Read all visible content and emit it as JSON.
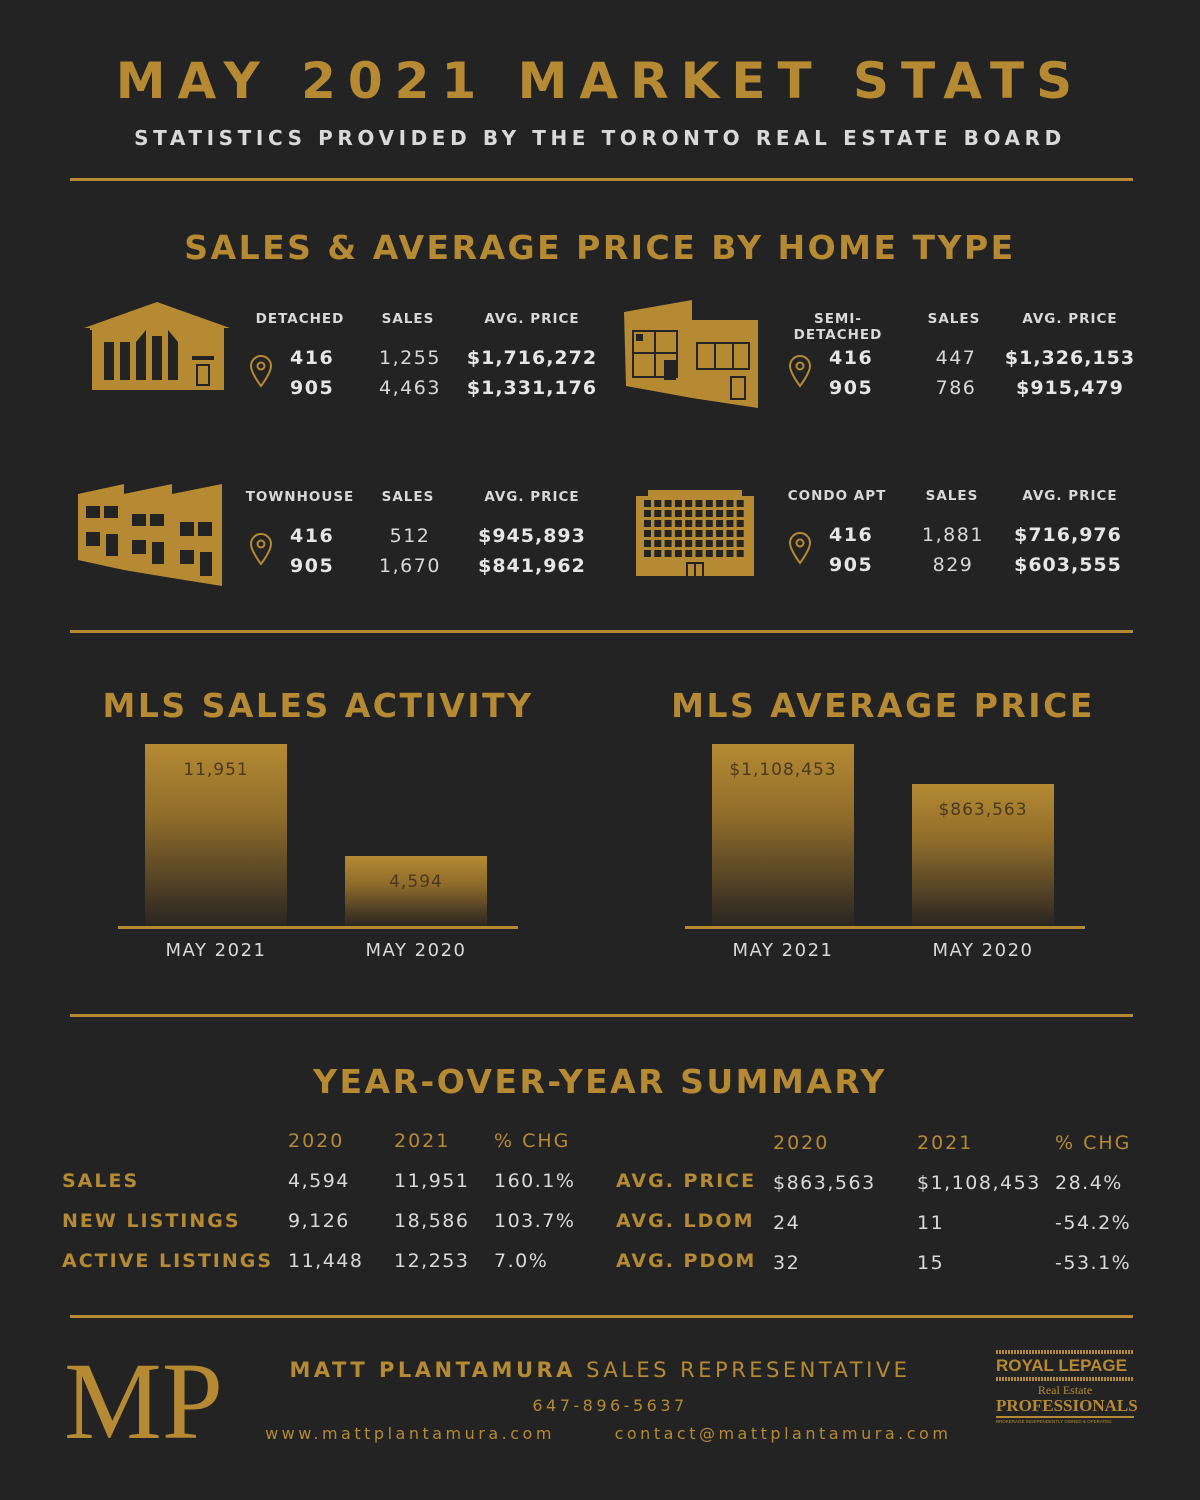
{
  "header": {
    "title": "MAY 2021 MARKET STATS",
    "subtitle": "STATISTICS PROVIDED BY THE TORONTO REAL ESTATE BOARD"
  },
  "home_types": {
    "section_title": "SALES & AVERAGE PRICE BY HOME TYPE",
    "sales_header": "SALES",
    "price_header": "AVG. PRICE",
    "types": [
      {
        "name": "DETACHED",
        "icon": "detached-house-icon",
        "rows": [
          {
            "code": "416",
            "sales": "1,255",
            "price": "$1,716,272"
          },
          {
            "code": "905",
            "sales": "4,463",
            "price": "$1,331,176"
          }
        ]
      },
      {
        "name": "SEMI-DETACHED",
        "icon": "semi-detached-house-icon",
        "rows": [
          {
            "code": "416",
            "sales": "447",
            "price": "$1,326,153"
          },
          {
            "code": "905",
            "sales": "786",
            "price": "$915,479"
          }
        ]
      },
      {
        "name": "TOWNHOUSE",
        "icon": "townhouse-icon",
        "rows": [
          {
            "code": "416",
            "sales": "512",
            "price": "$945,893"
          },
          {
            "code": "905",
            "sales": "1,670",
            "price": "$841,962"
          }
        ]
      },
      {
        "name": "CONDO APT",
        "icon": "condo-building-icon",
        "rows": [
          {
            "code": "416",
            "sales": "1,881",
            "price": "$716,976"
          },
          {
            "code": "905",
            "sales": "829",
            "price": "$603,555"
          }
        ]
      }
    ]
  },
  "chart_data": [
    {
      "type": "bar",
      "title": "MLS SALES ACTIVITY",
      "categories": [
        "MAY 2021",
        "MAY 2020"
      ],
      "values": [
        11951,
        4594
      ],
      "labels": [
        "11,951",
        "4,594"
      ]
    },
    {
      "type": "bar",
      "title": "MLS AVERAGE PRICE",
      "categories": [
        "MAY 2021",
        "MAY 2020"
      ],
      "values": [
        1108453,
        863563
      ],
      "labels": [
        "$1,108,453",
        "$863,563"
      ]
    }
  ],
  "yoy": {
    "title": "YEAR-OVER-YEAR SUMMARY",
    "left": {
      "headers": [
        "2020",
        "2021",
        "% CHG"
      ],
      "rows": [
        {
          "label": "SALES",
          "v2020": "4,594",
          "v2021": "11,951",
          "chg": "160.1%"
        },
        {
          "label": "NEW LISTINGS",
          "v2020": "9,126",
          "v2021": "18,586",
          "chg": "103.7%"
        },
        {
          "label": "ACTIVE LISTINGS",
          "v2020": "11,448",
          "v2021": "12,253",
          "chg": "7.0%"
        }
      ]
    },
    "right": {
      "headers": [
        "2020",
        "2021",
        "% CHG"
      ],
      "rows": [
        {
          "label": "AVG. PRICE",
          "v2020": "$863,563",
          "v2021": "$1,108,453",
          "chg": "28.4%"
        },
        {
          "label": "AVG. LDOM",
          "v2020": "24",
          "v2021": "11",
          "chg": "-54.2%"
        },
        {
          "label": "AVG. PDOM",
          "v2020": "32",
          "v2021": "15",
          "chg": "-53.1%"
        }
      ]
    }
  },
  "footer": {
    "logo_text": "MP",
    "name": "MATT PLANTAMURA",
    "role": "SALES REPRESENTATIVE",
    "phone": "647-896-5637",
    "website": "www.mattplantamura.com",
    "email": "contact@mattplantamura.com",
    "brokerage": {
      "line1": "ROYAL LEPAGE",
      "line2": "Real Estate",
      "line3": "PROFESSIONALS",
      "line4": "BROKERAGE INDEPENDENTLY OWNED & OPERATED"
    }
  },
  "colors": {
    "gold": "#b58a33",
    "background": "#232323",
    "text": "#d9d9d9"
  }
}
